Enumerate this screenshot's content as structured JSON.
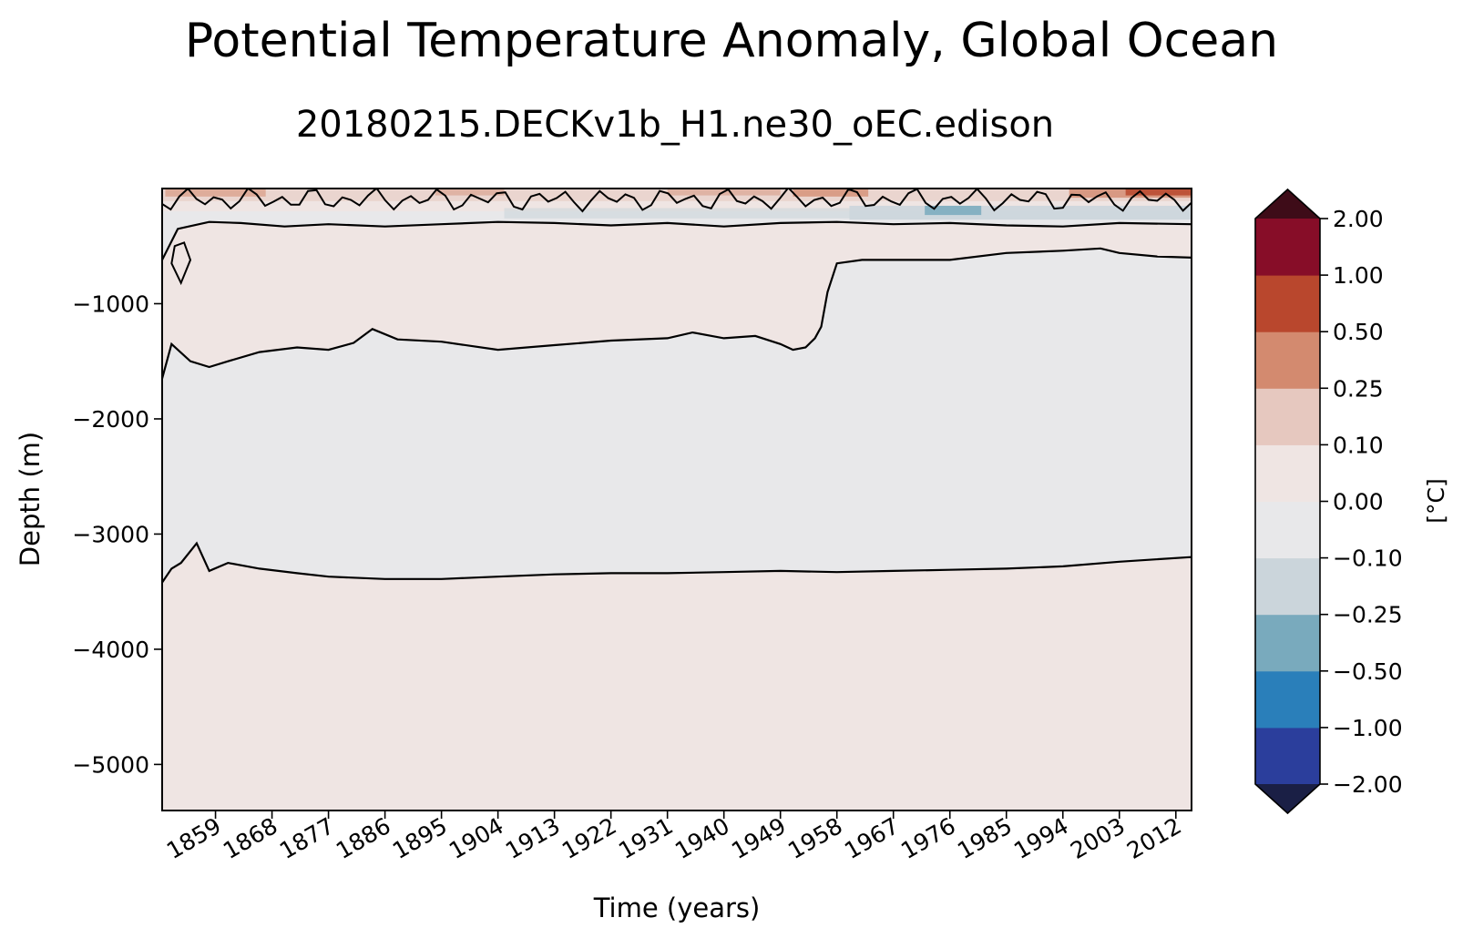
{
  "chart_data": {
    "type": "heatmap",
    "title": "Potential Temperature Anomaly, Global Ocean",
    "subtitle": "20180215.DECKv1b_H1.ne30_oEC.edison",
    "xlabel": "Time (years)",
    "ylabel": "Depth (m)",
    "xlim": [
      1850.5,
      2014.5
    ],
    "ylim": [
      -5400,
      0
    ],
    "x_ticks": [
      1859,
      1868,
      1877,
      1886,
      1895,
      1904,
      1913,
      1922,
      1931,
      1940,
      1949,
      1958,
      1967,
      1976,
      1985,
      1994,
      2003,
      2012
    ],
    "y_ticks": [
      -1000,
      -2000,
      -3000,
      -4000,
      -5000
    ],
    "colorbar": {
      "label": "[°C]",
      "levels": [
        "-2.00",
        "-1.00",
        "-0.50",
        "-0.25",
        "-0.10",
        "0.00",
        "0.10",
        "0.25",
        "0.50",
        "1.00",
        "2.00"
      ],
      "colors": [
        "#2b3e9c",
        "#2a7fba",
        "#79aabd",
        "#cbd5db",
        "#e8e8ea",
        "#efe5e3",
        "#e6c8bf",
        "#d38a6f",
        "#b9472d",
        "#870d28"
      ],
      "extend_low_color": "#1a1f45",
      "extend_high_color": "#3e0c18"
    },
    "zero_contours": [
      {
        "name": "",
        "x": [
          1850.5,
          1852,
          1855,
          1858,
          1861,
          1866,
          1872,
          1877,
          1881,
          1884,
          1888,
          1895,
          1904,
          1913,
          1922,
          1931,
          1935,
          1940,
          1945,
          1949,
          1951,
          1953,
          1954.5,
          1955.5,
          1956.5,
          1958,
          1962,
          1967,
          1976,
          1985,
          1994,
          2000,
          2003,
          2009,
          2014.5
        ],
        "y": [
          -1650,
          -1350,
          -1500,
          -1550,
          -1500,
          -1420,
          -1380,
          -1400,
          -1340,
          -1220,
          -1310,
          -1330,
          -1400,
          -1360,
          -1320,
          -1300,
          -1250,
          -1300,
          -1280,
          -1350,
          -1400,
          -1380,
          -1300,
          -1200,
          -900,
          -650,
          -620,
          -620,
          -620,
          -560,
          -540,
          -520,
          -560,
          -590,
          -600
        ]
      },
      {
        "name": "",
        "x": [
          1850.5,
          1852,
          1853.5,
          1856,
          1858,
          1861,
          1866,
          1872,
          1877,
          1886,
          1895,
          1904,
          1913,
          1922,
          1931,
          1940,
          1949,
          1958,
          1967,
          1976,
          1985,
          1994,
          2003,
          2014.5
        ],
        "y": [
          -3420,
          -3300,
          -3250,
          -3080,
          -3320,
          -3250,
          -3300,
          -3340,
          -3370,
          -3390,
          -3390,
          -3370,
          -3350,
          -3340,
          -3340,
          -3330,
          -3320,
          -3330,
          -3320,
          -3310,
          -3300,
          -3280,
          -3240,
          -3200
        ]
      },
      {
        "name": "",
        "x": [
          1850.5,
          1853,
          1858,
          1863,
          1870,
          1877,
          1886,
          1895,
          1904,
          1913,
          1922,
          1931,
          1940,
          1949,
          1958,
          1967,
          1976,
          1985,
          1994,
          2003,
          2014.5
        ],
        "y": [
          -620,
          -350,
          -290,
          -300,
          -330,
          -310,
          -330,
          -310,
          -290,
          -300,
          -320,
          -300,
          -330,
          -300,
          -290,
          -310,
          -300,
          -320,
          -330,
          -300,
          -310
        ]
      }
    ]
  }
}
